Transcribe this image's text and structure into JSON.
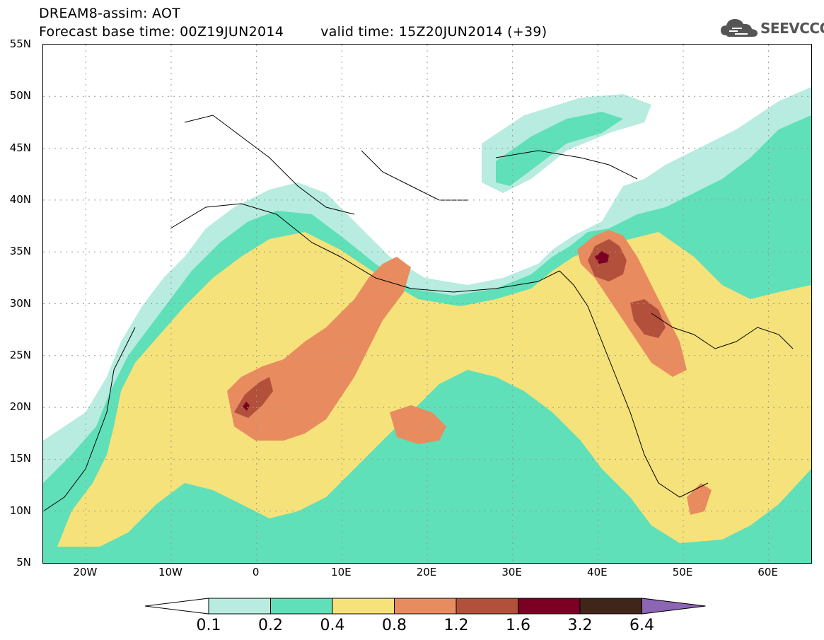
{
  "header": {
    "model_title": "DREAM8-assim: AOT",
    "base_time": "Forecast base time: 00Z19JUN2014",
    "valid_time": "valid time: 15Z20JUN2014 (+39)"
  },
  "logo": {
    "text": "SEEVCCC",
    "icon": "cloud-logo-icon"
  },
  "map": {
    "lat_labels": [
      "55N",
      "50N",
      "45N",
      "40N",
      "35N",
      "30N",
      "25N",
      "20N",
      "15N",
      "10N",
      "5N"
    ],
    "lon_labels": [
      "20W",
      "10W",
      "0",
      "10E",
      "20E",
      "30E",
      "40E",
      "50E",
      "60E"
    ],
    "lon_range": [
      -25,
      65
    ],
    "lat_range": [
      5,
      55
    ],
    "grid": "dotted"
  },
  "legend": {
    "thresholds": [
      "0.1",
      "0.2",
      "0.4",
      "0.8",
      "1.2",
      "1.6",
      "3.2",
      "6.4"
    ],
    "colors": [
      "#ffffff",
      "#b8ece0",
      "#5fe0b8",
      "#f6e27a",
      "#e88c60",
      "#b2503c",
      "#7c0024",
      "#40261a",
      "#8c66b4"
    ]
  }
}
